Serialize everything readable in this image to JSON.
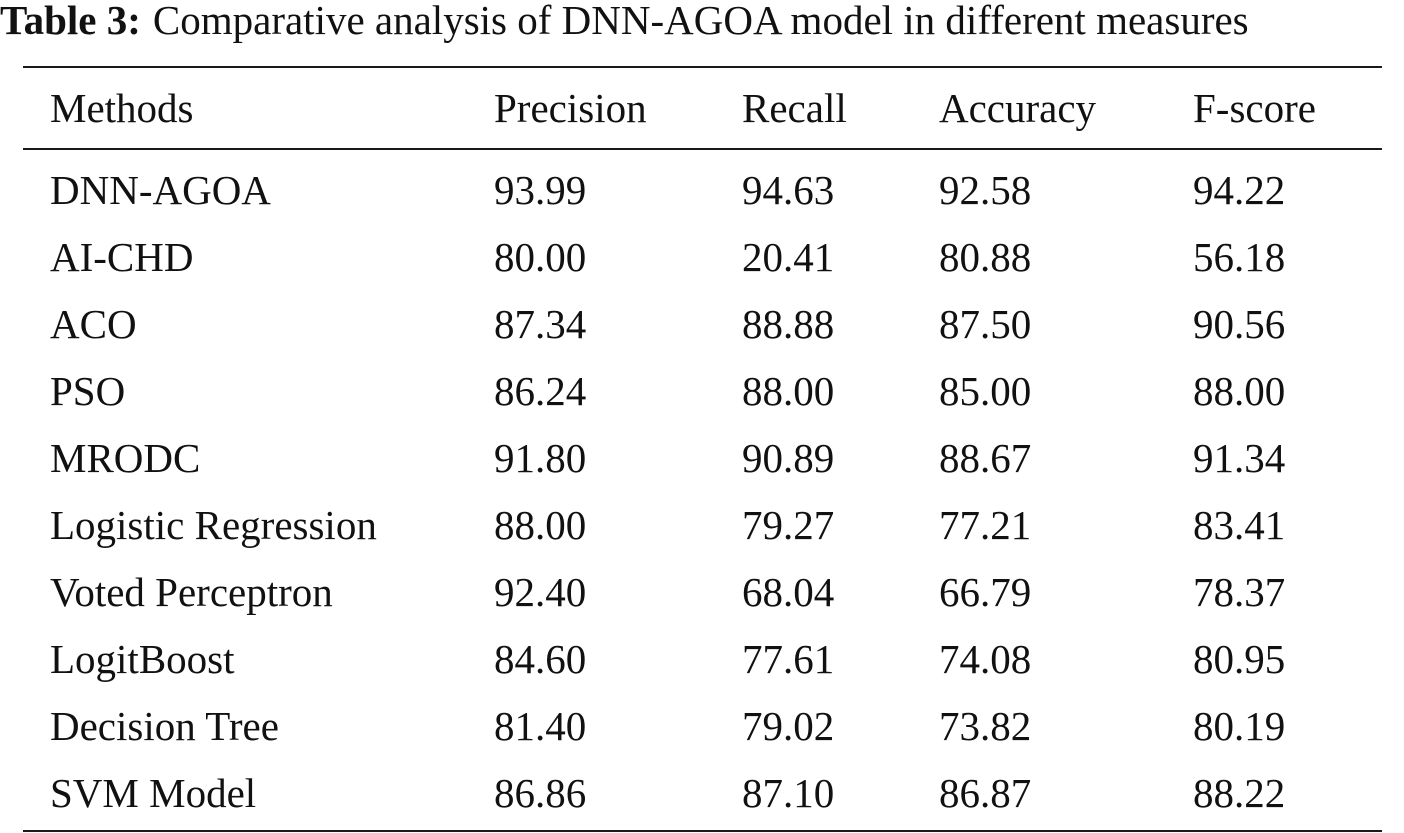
{
  "caption": {
    "label": "Table 3:",
    "text": "Comparative analysis of DNN-AGOA model in different measures"
  },
  "table": {
    "headers": [
      "Methods",
      "Precision",
      "Recall",
      "Accuracy",
      "F-score"
    ],
    "rows": [
      [
        "DNN-AGOA",
        "93.99",
        "94.63",
        "92.58",
        "94.22"
      ],
      [
        "AI-CHD",
        "80.00",
        "20.41",
        "80.88",
        "56.18"
      ],
      [
        "ACO",
        "87.34",
        "88.88",
        "87.50",
        "90.56"
      ],
      [
        "PSO",
        "86.24",
        "88.00",
        "85.00",
        "88.00"
      ],
      [
        "MRODC",
        "91.80",
        "90.89",
        "88.67",
        "91.34"
      ],
      [
        "Logistic Regression",
        "88.00",
        "79.27",
        "77.21",
        "83.41"
      ],
      [
        "Voted Perceptron",
        "92.40",
        "68.04",
        "66.79",
        "78.37"
      ],
      [
        "LogitBoost",
        "84.60",
        "77.61",
        "74.08",
        "80.95"
      ],
      [
        "Decision Tree",
        "81.40",
        "79.02",
        "73.82",
        "80.19"
      ],
      [
        "SVM Model",
        "86.86",
        "87.10",
        "86.87",
        "88.22"
      ]
    ]
  }
}
